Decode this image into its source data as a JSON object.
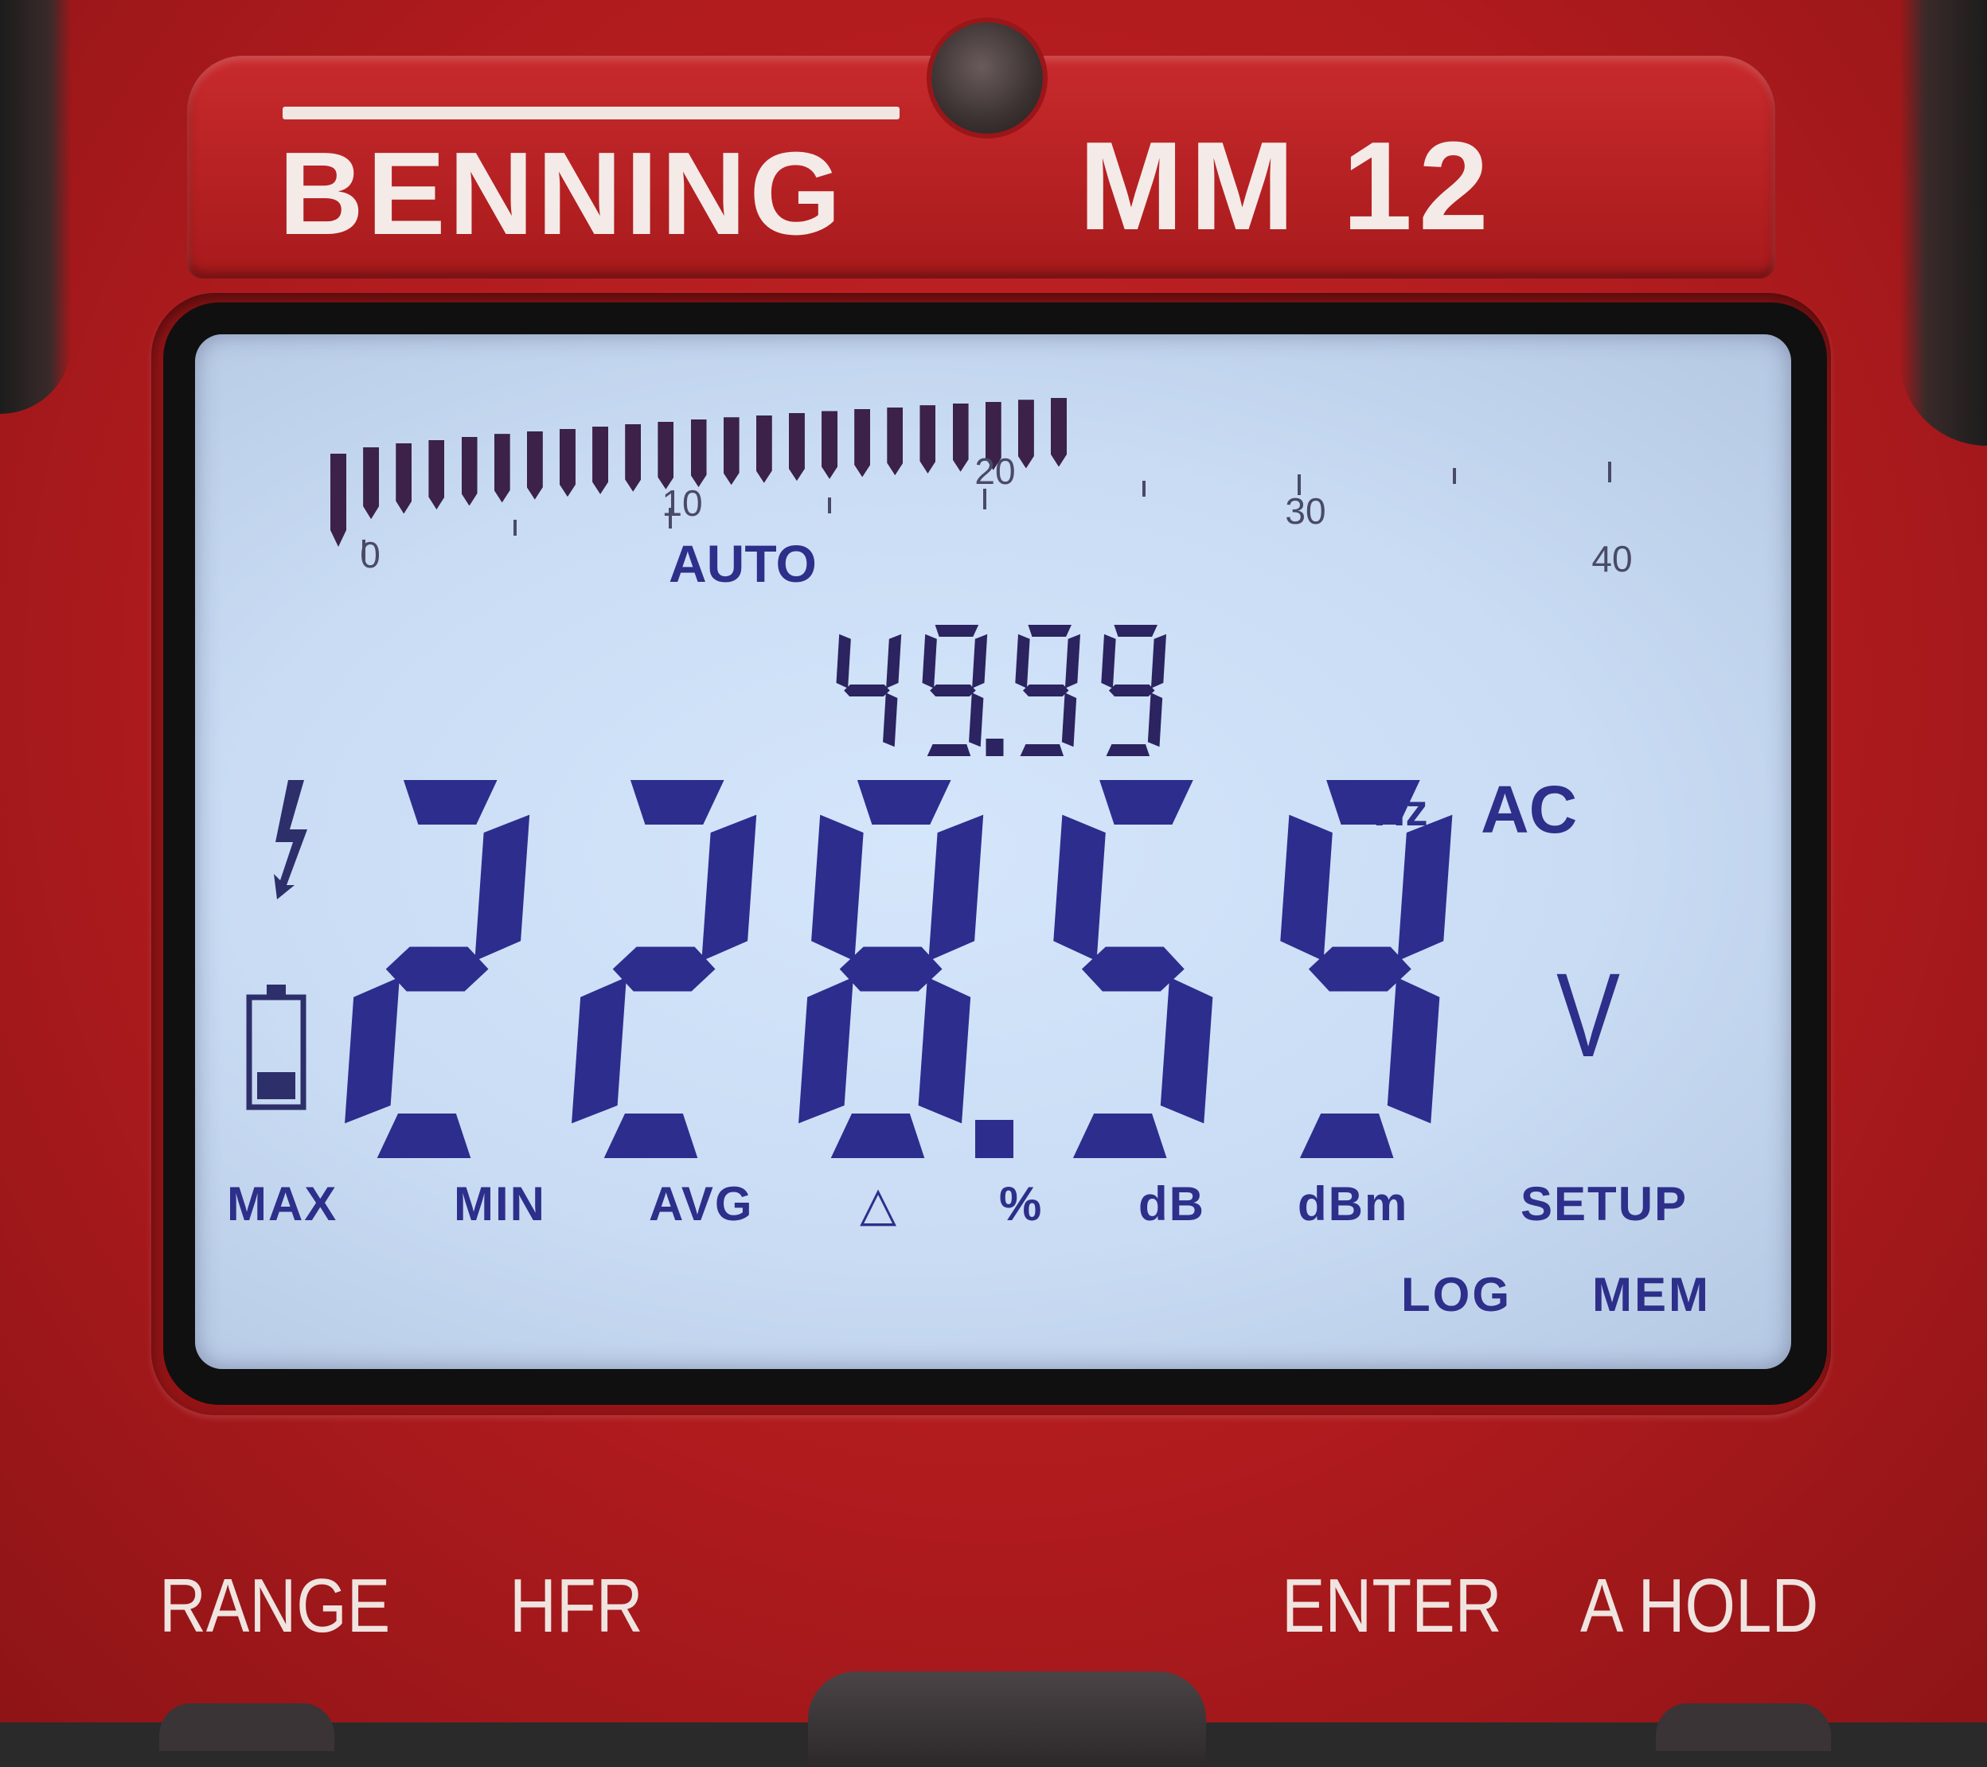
{
  "device": {
    "brand": "BENNING",
    "model": "MM 12"
  },
  "display": {
    "range_mode": "AUTO",
    "secondary_reading": "49.99",
    "secondary_unit": "Hz",
    "coupling": "AC",
    "main_reading": "228.59",
    "main_unit": "V",
    "bargraph": {
      "scale_labels": [
        "0",
        "10",
        "20",
        "30",
        "40"
      ],
      "scale_max": 40,
      "filled_segments": 23,
      "segments_total": 40
    },
    "annunciators_row1": [
      "MAX",
      "MIN",
      "AVG",
      "△",
      "%",
      "dB",
      "dBm",
      "SETUP"
    ],
    "annunciators_row2": [
      "LOG",
      "MEM"
    ]
  },
  "buttons": [
    "RANGE",
    "HFR",
    "ENTER",
    "A HOLD"
  ],
  "colors": {
    "housing": "#b01b1e",
    "lcd_background": "#cfe0f7",
    "lcd_segments": "#2d2d8e"
  },
  "icons": [
    "hazard-bolt-icon",
    "battery-icon"
  ]
}
